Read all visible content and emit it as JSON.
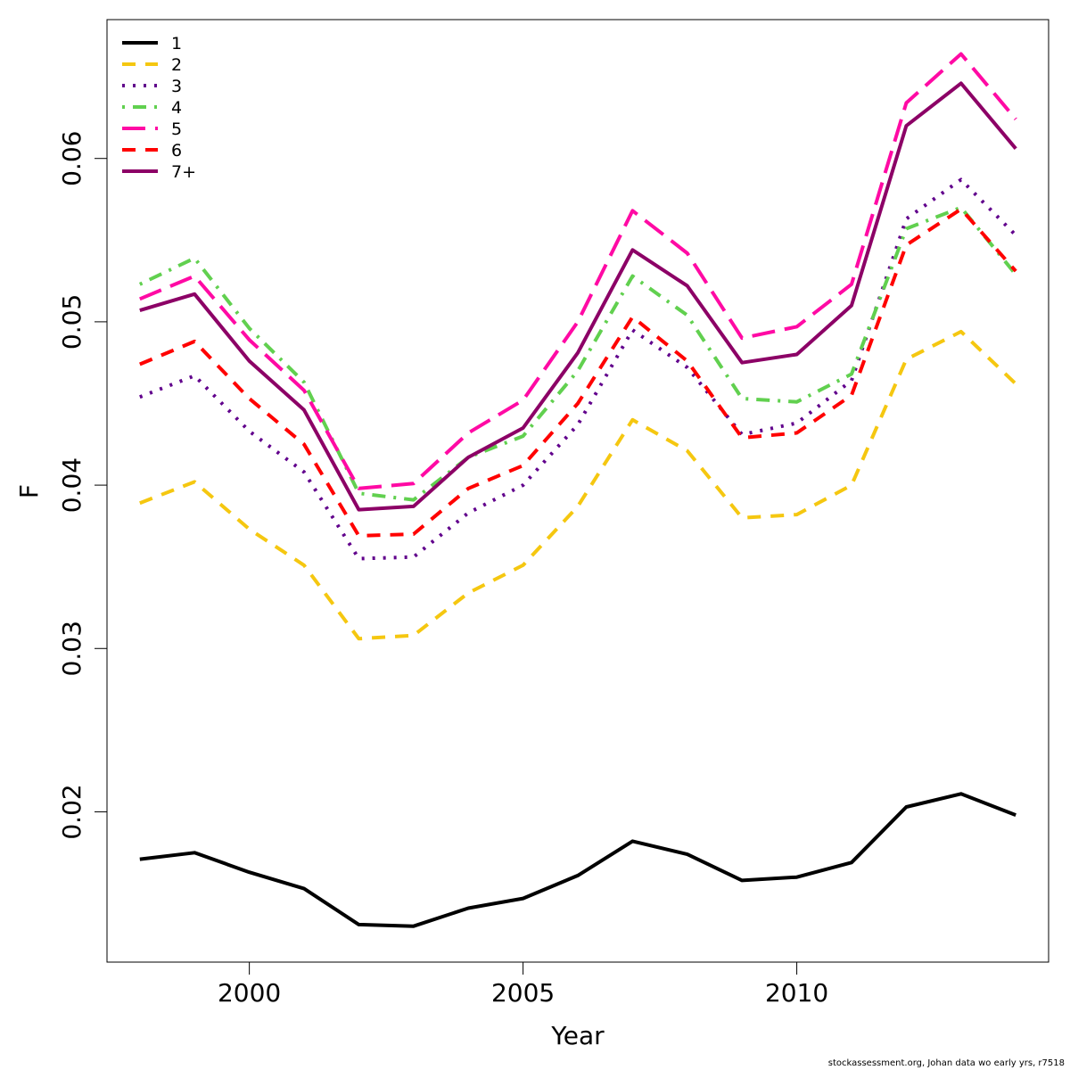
{
  "chart_data": {
    "type": "line",
    "xlabel": "Year",
    "ylabel": "F",
    "xlim": [
      1997.4,
      2014.6
    ],
    "ylim": [
      0.0108,
      0.0685
    ],
    "x_ticks": [
      2000,
      2005,
      2010
    ],
    "x_tick_labels": [
      "2000",
      "2005",
      "2010"
    ],
    "y_ticks": [
      0.02,
      0.03,
      0.04,
      0.05,
      0.06
    ],
    "y_tick_labels": [
      "0.02",
      "0.03",
      "0.04",
      "0.05",
      "0.06"
    ],
    "grid": false,
    "legend_position": "top-left",
    "x": [
      1998,
      1999,
      2000,
      2001,
      2002,
      2003,
      2004,
      2005,
      2006,
      2007,
      2008,
      2009,
      2010,
      2011,
      2012,
      2013,
      2014
    ],
    "series": [
      {
        "name": "1",
        "color": "#000000",
        "dash": "solid",
        "values": [
          0.0171,
          0.0175,
          0.0163,
          0.0153,
          0.0131,
          0.013,
          0.0141,
          0.0147,
          0.0161,
          0.0182,
          0.0174,
          0.0158,
          0.016,
          0.0169,
          0.0203,
          0.0211,
          0.0198
        ]
      },
      {
        "name": "2",
        "color": "#F5C710",
        "dash": "dashed",
        "values": [
          0.0389,
          0.0402,
          0.0373,
          0.0351,
          0.0306,
          0.0308,
          0.0334,
          0.0351,
          0.0387,
          0.044,
          0.0421,
          0.038,
          0.0382,
          0.04,
          0.0477,
          0.0494,
          0.0462
        ]
      },
      {
        "name": "3",
        "color": "#61008C",
        "dash": "dotted",
        "values": [
          0.0454,
          0.0467,
          0.0433,
          0.0408,
          0.0355,
          0.0356,
          0.0383,
          0.04,
          0.0437,
          0.0495,
          0.0472,
          0.0431,
          0.0438,
          0.0464,
          0.0563,
          0.0587,
          0.0553
        ]
      },
      {
        "name": "4",
        "color": "#61D04F",
        "dash": "dotdash",
        "values": [
          0.0523,
          0.0539,
          0.0496,
          0.0463,
          0.0395,
          0.0391,
          0.0417,
          0.043,
          0.047,
          0.0528,
          0.0504,
          0.0453,
          0.0451,
          0.0468,
          0.0557,
          0.057,
          0.0529
        ]
      },
      {
        "name": "5",
        "color": "#FF0AA4",
        "dash": "longdash",
        "values": [
          0.0514,
          0.0528,
          0.0489,
          0.0458,
          0.0398,
          0.0401,
          0.0432,
          0.0452,
          0.05,
          0.0568,
          0.0542,
          0.049,
          0.0497,
          0.0523,
          0.0634,
          0.0664,
          0.0624
        ]
      },
      {
        "name": "6",
        "color": "#FF0000",
        "dash": "dashed",
        "values": [
          0.0474,
          0.0488,
          0.0453,
          0.0425,
          0.0369,
          0.037,
          0.0398,
          0.0412,
          0.045,
          0.0503,
          0.0476,
          0.0429,
          0.0432,
          0.0455,
          0.0547,
          0.0569,
          0.0531
        ]
      },
      {
        "name": "7+",
        "color": "#8C0066",
        "dash": "solid",
        "values": [
          0.0507,
          0.0517,
          0.0476,
          0.0446,
          0.0385,
          0.0387,
          0.0417,
          0.0435,
          0.0481,
          0.0544,
          0.0522,
          0.0475,
          0.048,
          0.051,
          0.062,
          0.0646,
          0.0606
        ]
      }
    ]
  },
  "credit": "stockassessment.org, Johan data wo early yrs, r7518"
}
